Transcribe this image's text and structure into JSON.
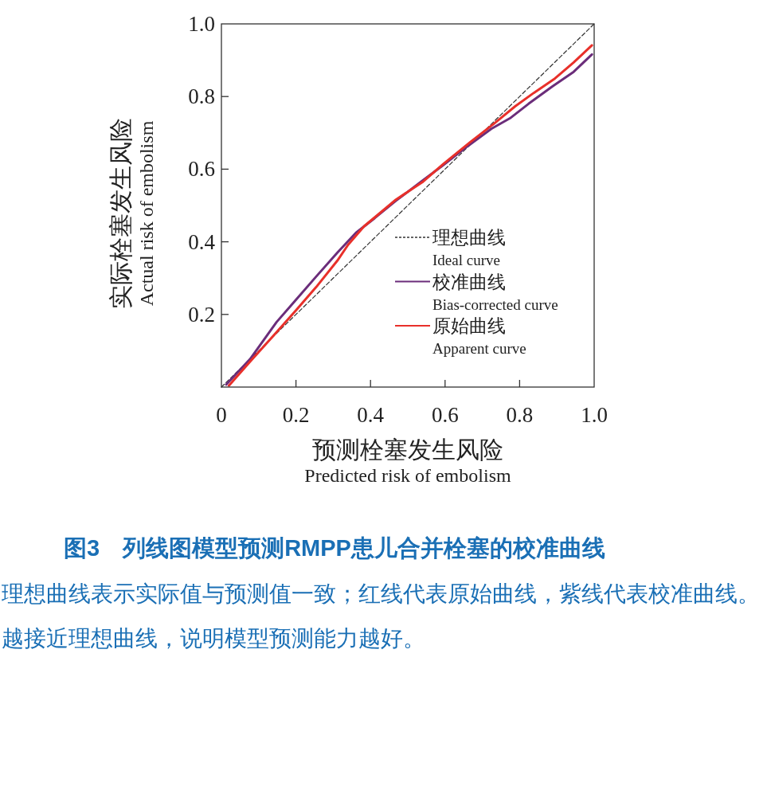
{
  "chart_data": {
    "type": "line",
    "title": "图3　列线图模型预测RMPP患儿合并栓塞的校准曲线",
    "xlabel": "预测栓塞发生风险\nPredicted risk of embolism",
    "ylabel": "实际栓塞发生风险\nActual risk of embolism",
    "annotations": [
      "理想曲线表示实际值与预测值一致；红线代表原始曲线，紫线代表校准曲线。越接近理想曲线，说明模型预测能力越好。"
    ],
    "xlim": [
      0,
      1
    ],
    "ylim": [
      0,
      1
    ],
    "xticks": [
      {
        "value": 0,
        "label": "0"
      },
      0.2,
      0.4,
      0.6,
      {
        "value": 0.8,
        "label": "0.8"
      },
      {
        "value": 1,
        "label": "1.0"
      }
    ],
    "yticks": [
      0.2,
      0.4,
      0.6,
      0.8,
      {
        "value": 1,
        "label": "1.0"
      }
    ],
    "grid": false,
    "legend": "bottom right",
    "marker": "none",
    "series": [
      {
        "name": "理想曲线\nIdeal curve",
        "color": "#333333",
        "line_style": "dashed",
        "x": [
          0,
          1
        ],
        "values": [
          0,
          1
        ]
      },
      {
        "name": "校准曲线\nBias-corrected curve",
        "color": "#6b2d7a",
        "line_style": "solid",
        "x": [
          0.013,
          0.077,
          0.148,
          0.198,
          0.254,
          0.311,
          0.361,
          0.411,
          0.468,
          0.539,
          0.596,
          0.66,
          0.724,
          0.774,
          0.824,
          0.888,
          0.945,
          0.994
        ],
        "values": [
          0.007,
          0.077,
          0.179,
          0.238,
          0.304,
          0.37,
          0.425,
          0.465,
          0.513,
          0.568,
          0.612,
          0.663,
          0.711,
          0.74,
          0.78,
          0.828,
          0.868,
          0.916
        ]
      },
      {
        "name": "原始曲线\nApparent curve",
        "color": "#e8302a",
        "line_style": "solid",
        "x": [
          0.02,
          0.077,
          0.141,
          0.198,
          0.254,
          0.311,
          0.34,
          0.383,
          0.468,
          0.539,
          0.596,
          0.667,
          0.731,
          0.788,
          0.838,
          0.895,
          0.945,
          0.994
        ],
        "values": [
          0.004,
          0.07,
          0.143,
          0.209,
          0.275,
          0.348,
          0.392,
          0.443,
          0.516,
          0.564,
          0.615,
          0.674,
          0.725,
          0.773,
          0.81,
          0.85,
          0.894,
          0.941
        ]
      }
    ]
  }
}
